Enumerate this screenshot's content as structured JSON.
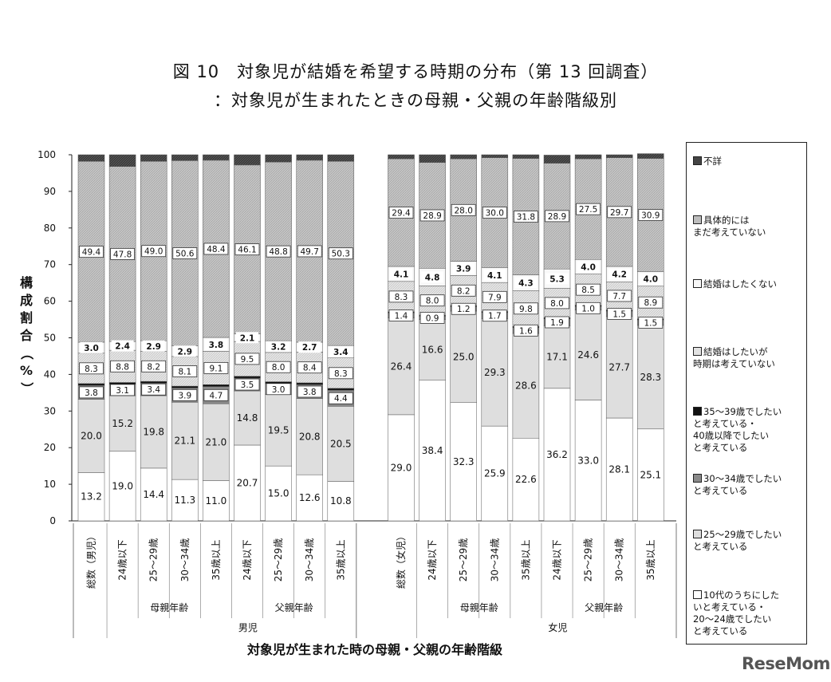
{
  "chart_data": {
    "type": "bar",
    "stacked": true,
    "title": "図 10　対象児が結婚を希望する時期の分布（第 13 回調査）",
    "subtitle": "：対象児が生まれたときの母親・父親の年齢階級別",
    "xlabel": "対象児が生まれた時の母親・父親の年齢階級",
    "ylabel": "構成割合（%）",
    "ylim": [
      0,
      100
    ],
    "yticks": [
      "0",
      "10",
      "20",
      "30",
      "40",
      "50",
      "60",
      "70",
      "80",
      "90",
      "100"
    ],
    "categories": [
      "総数（男児）",
      "24歳以下",
      "25～29歳",
      "30～34歳",
      "35歳以上",
      "24歳以下",
      "25～29歳",
      "30～34歳",
      "35歳以上",
      "総数（女児）",
      "24歳以下",
      "25～29歳",
      "30～34歳",
      "35歳以上",
      "24歳以下",
      "25～29歳",
      "30～34歳",
      "35歳以上"
    ],
    "groups": [
      {
        "label": "母親年齢",
        "from": 1,
        "to": 4
      },
      {
        "label": "父親年齢",
        "from": 5,
        "to": 8
      },
      {
        "label": "母親年齢",
        "from": 10,
        "to": 13
      },
      {
        "label": "父親年齢",
        "from": 14,
        "to": 17
      }
    ],
    "supergroups": [
      {
        "label": "男児",
        "from": 0,
        "to": 8
      },
      {
        "label": "女児",
        "from": 9,
        "to": 17
      }
    ],
    "series": [
      {
        "name": "10代のうちにしたいと考えている・20～24歳でしたいと考えている",
        "values": [
          13.2,
          19.0,
          14.4,
          11.3,
          11.0,
          20.7,
          15.0,
          12.6,
          10.8,
          29.0,
          38.4,
          32.3,
          25.9,
          22.6,
          36.2,
          33.0,
          28.1,
          25.1
        ]
      },
      {
        "name": "25～29歳でしたいと考えている",
        "values": [
          20.0,
          15.2,
          19.8,
          21.1,
          21.0,
          14.8,
          19.5,
          20.8,
          20.5,
          26.4,
          16.6,
          25.0,
          29.3,
          28.6,
          17.1,
          24.6,
          27.7,
          28.3
        ]
      },
      {
        "name": "30～34歳でしたいと考えている",
        "values": [
          3.8,
          3.1,
          3.4,
          3.9,
          4.7,
          3.5,
          3.0,
          3.8,
          4.4,
          1.4,
          0.9,
          1.2,
          1.7,
          1.6,
          1.9,
          1.0,
          1.5,
          1.5
        ]
      },
      {
        "name": "35～39歳でしたいと考えている・40歳以降でしたいと考えている",
        "values": [
          0.5,
          0.5,
          0.5,
          0.5,
          0.5,
          0.5,
          0.5,
          0.5,
          0.5,
          0.3,
          0.3,
          0.3,
          0.3,
          0.3,
          0.3,
          0.3,
          0.3,
          0.3
        ]
      },
      {
        "name": "結婚はしたいが時期は考えていない",
        "values": [
          8.3,
          8.8,
          8.2,
          8.1,
          9.1,
          9.5,
          8.0,
          8.4,
          8.3,
          8.3,
          8.0,
          8.2,
          7.9,
          9.8,
          8.0,
          8.5,
          7.7,
          8.9
        ]
      },
      {
        "name": "結婚はしたくない",
        "values": [
          3.0,
          2.4,
          2.9,
          2.9,
          3.8,
          2.1,
          3.2,
          2.7,
          3.4,
          4.1,
          4.8,
          3.9,
          4.1,
          4.3,
          5.3,
          4.0,
          4.2,
          4.0
        ]
      },
      {
        "name": "具体的にはまだ考えていない",
        "values": [
          49.4,
          47.8,
          49.0,
          50.6,
          48.4,
          46.1,
          48.8,
          49.7,
          50.3,
          29.4,
          28.9,
          28.0,
          30.0,
          31.8,
          28.9,
          27.5,
          29.7,
          30.9
        ]
      },
      {
        "name": "不詳",
        "values": [
          1.8,
          3.2,
          1.8,
          1.6,
          1.5,
          2.8,
          2.0,
          1.5,
          1.8,
          1.1,
          2.1,
          1.1,
          0.8,
          1.0,
          2.2,
          1.1,
          0.8,
          1.3
        ]
      }
    ],
    "value_labels": [
      [
        "13.2",
        "19.0",
        "14.4",
        "11.3",
        "11.0",
        "20.7",
        "15.0",
        "12.6",
        "10.8",
        "29.0",
        "38.4",
        "32.3",
        "25.9",
        "22.6",
        "36.2",
        "33.0",
        "28.1",
        "25.1"
      ],
      [
        "20.0",
        "15.2",
        "19.8",
        "21.1",
        "21.0",
        "14.8",
        "19.5",
        "20.8",
        "20.5",
        "26.4",
        "16.6",
        "25.0",
        "29.3",
        "28.6",
        "17.1",
        "24.6",
        "27.7",
        "28.3"
      ],
      [
        "3.8",
        "3.1",
        "3.4",
        "3.9",
        "4.7",
        "3.5",
        "3.0",
        "3.8",
        "4.4",
        "1.4",
        "0.9",
        "1.2",
        "1.7",
        "1.6",
        "1.9",
        "1.0",
        "1.5",
        "1.5"
      ],
      null,
      [
        "8.3",
        "8.8",
        "8.2",
        "8.1",
        "9.1",
        "9.5",
        "8.0",
        "8.4",
        "8.3",
        "8.3",
        "8.0",
        "8.2",
        "7.9",
        "9.8",
        "8.0",
        "8.5",
        "7.7",
        "8.9"
      ],
      [
        "3.0",
        "2.4",
        "2.9",
        "2.9",
        "3.8",
        "2.1",
        "3.2",
        "2.7",
        "3.4",
        "4.1",
        "4.8",
        "3.9",
        "4.1",
        "4.3",
        "5.3",
        "4.0",
        "4.2",
        "4.0"
      ],
      [
        "49.4",
        "47.8",
        "49.0",
        "50.6",
        "48.4",
        "46.1",
        "48.8",
        "49.7",
        "50.3",
        "29.4",
        "28.9",
        "28.0",
        "30.0",
        "31.8",
        "28.9",
        "27.5",
        "29.7",
        "30.9"
      ],
      null
    ],
    "series_colors": [
      "#ffffff",
      "#dedede",
      "#f4f4f4",
      "#111111",
      "#e2e2e2",
      "#f8f8f8",
      "#bdbdbd",
      "#444444"
    ],
    "legend": {
      "placement": "right",
      "entries": [
        {
          "label": "不詳",
          "swatch": "#444444"
        },
        {
          "label": "具体的には\nまだ考えていない",
          "swatch": "#bdbdbd"
        },
        {
          "label": "結婚はしたくない",
          "swatch": "#f8f8f8"
        },
        {
          "label": "結婚はしたいが\n時期は考えていない",
          "swatch": "#e2e2e2"
        },
        {
          "label": "35～39歳でしたい\nと考えている・\n40歳以降でしたい\nと考えている",
          "swatch": "#111111"
        },
        {
          "label": "30～34歳でしたい\nと考えている",
          "swatch": "#8a8a8a"
        },
        {
          "label": "25～29歳でしたい\nと考えている",
          "swatch": "#dedede"
        },
        {
          "label": "10代のうちにした\nいと考えている・\n20～24歳でしたい\nと考えている",
          "swatch": "#ffffff"
        }
      ]
    }
  },
  "watermark": "ReseMom"
}
